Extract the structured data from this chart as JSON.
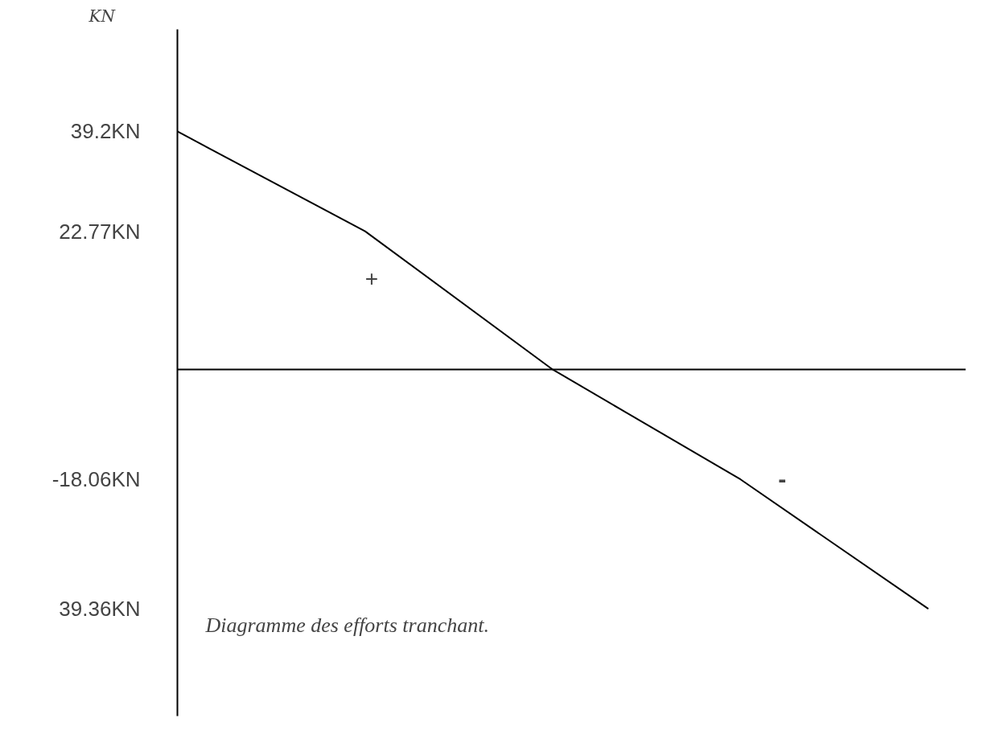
{
  "chart_data": {
    "type": "line",
    "ylabel": "KN",
    "categories": [
      null,
      null,
      null,
      null,
      null
    ],
    "series": [
      {
        "color": "#000000",
        "values": [
          39.2,
          22.77,
          0,
          -18.06,
          -39.36
        ]
      }
    ],
    "ylim": [
      -57,
      56
    ],
    "yticks": [
      {
        "value": 39.2,
        "label": "39.2KN"
      },
      {
        "value": 22.77,
        "label": "22.77KN"
      },
      {
        "value": -18.06,
        "label": "-18.06KN"
      },
      {
        "value": -39.36,
        "label": "39.36KN"
      }
    ],
    "annotations": [
      "+",
      "-",
      "Diagramme des efforts tranchant."
    ],
    "grid": false,
    "marker": "none",
    "line_style": "solid"
  }
}
